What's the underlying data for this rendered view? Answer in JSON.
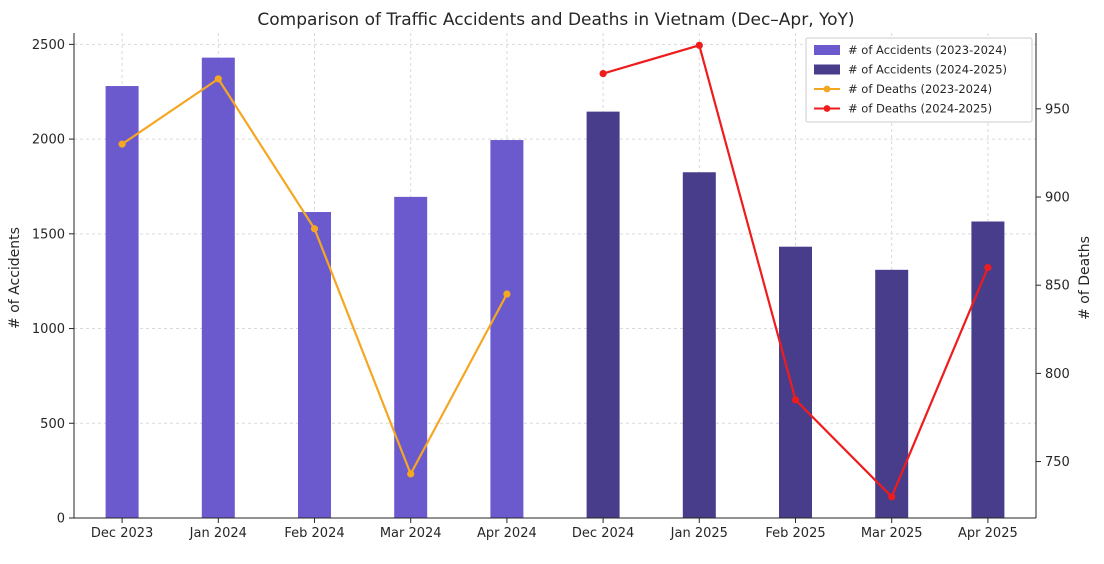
{
  "chart_data": {
    "type": "bar",
    "title": "Comparison of Traffic Accidents and Deaths in Vietnam (Dec–Apr, YoY)",
    "categories": [
      "Dec 2023",
      "Jan 2024",
      "Feb 2024",
      "Mar 2024",
      "Apr 2024",
      "Dec 2024",
      "Jan 2025",
      "Feb 2025",
      "Mar 2025",
      "Apr 2025"
    ],
    "ylabel_left": "# of Accidents",
    "ylabel_right": "# of Deaths",
    "ylim_left": [
      0,
      2560
    ],
    "yticks_left": [
      0,
      500,
      1000,
      1500,
      2000,
      2500
    ],
    "ylim_right": [
      718,
      993
    ],
    "yticks_right": [
      750,
      800,
      850,
      900,
      950
    ],
    "grid": true,
    "legend_position": "top-right",
    "bar_series": [
      {
        "name": "# of Accidents (2023-2024)",
        "color": "#6a5acd",
        "values": [
          2280,
          2430,
          1615,
          1695,
          1995,
          null,
          null,
          null,
          null,
          null
        ]
      },
      {
        "name": "# of Accidents (2024-2025)",
        "color": "#483d8b",
        "values": [
          null,
          null,
          null,
          null,
          null,
          2145,
          1825,
          1432,
          1310,
          1565
        ]
      }
    ],
    "line_series": [
      {
        "name": "# of Deaths (2023-2024)",
        "color": "#f5a623",
        "values": [
          930,
          967,
          882,
          743,
          845,
          null,
          null,
          null,
          null,
          null
        ]
      },
      {
        "name": "# of Deaths (2024-2025)",
        "color": "#ee1c1c",
        "values": [
          null,
          null,
          null,
          null,
          null,
          970,
          986,
          785,
          730,
          860
        ]
      }
    ]
  }
}
